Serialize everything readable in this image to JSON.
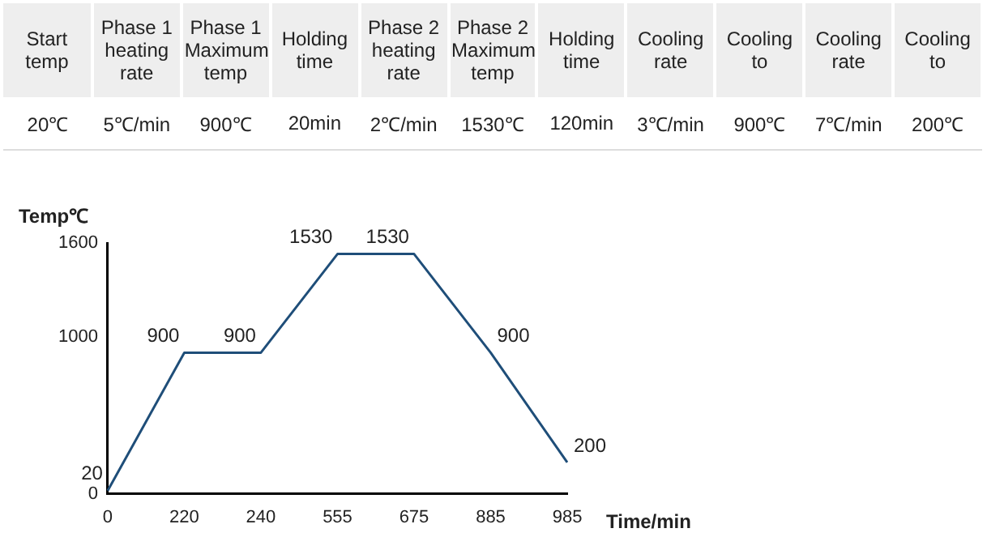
{
  "chart_data": {
    "type": "line",
    "xlabel": "Time/min",
    "ylabel": "Temp℃",
    "categories": [
      "0",
      "220",
      "240",
      "555",
      "675",
      "885",
      "985"
    ],
    "series": [
      {
        "color": "#1f4e79",
        "values": [
          20,
          900,
          900,
          1530,
          1530,
          900,
          200
        ]
      }
    ],
    "ylim": [
      0,
      1600
    ],
    "yticks": [
      0,
      1000,
      1600
    ],
    "grid": false,
    "legend": false,
    "marker": "none",
    "line_style": "solid",
    "data_labels": true,
    "annotations": [
      "Start temp",
      "Phase 1 heating rate",
      "Phase 1 Maximum temp",
      "Holding time",
      "Phase 2 heating rate",
      "Phase 2 Maximum temp",
      "Holding time",
      "Cooling rate",
      "Cooling to",
      "Cooling rate",
      "Cooling to",
      "20℃",
      "5℃/min",
      "900℃",
      "20min",
      "2℃/min",
      "1530℃",
      "120min",
      "3℃/min",
      "900℃",
      "7℃/min",
      "200℃"
    ]
  }
}
